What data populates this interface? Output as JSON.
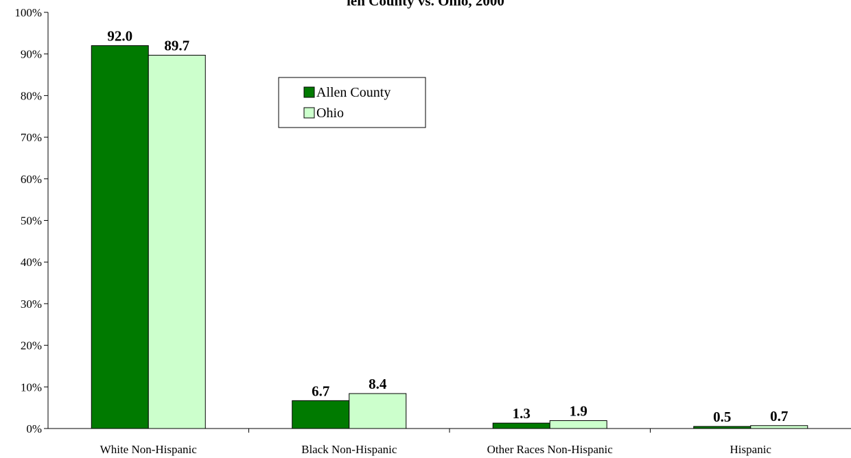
{
  "chart_data": {
    "type": "bar",
    "title": "len County vs. Ohio, 2000",
    "categories": [
      "White Non-Hispanic",
      "Black Non-Hispanic",
      "Other Races Non-Hispanic",
      "Hispanic"
    ],
    "series": [
      {
        "name": "Allen County",
        "values": [
          92.0,
          6.7,
          1.3,
          0.5
        ],
        "color": "#007a00"
      },
      {
        "name": "Ohio",
        "values": [
          89.7,
          8.4,
          1.9,
          0.7
        ],
        "color": "#ccffcc"
      }
    ],
    "data_labels": [
      [
        "92.0",
        "6.7",
        "1.3",
        "0.5"
      ],
      [
        "89.7",
        "8.4",
        "1.9",
        "0.7"
      ]
    ],
    "y_ticks": [
      "0%",
      "10%",
      "20%",
      "30%",
      "40%",
      "50%",
      "60%",
      "70%",
      "80%",
      "90%",
      "100%"
    ],
    "ylim": [
      0,
      100
    ],
    "grid": false,
    "legend_position": "top-center-left"
  }
}
